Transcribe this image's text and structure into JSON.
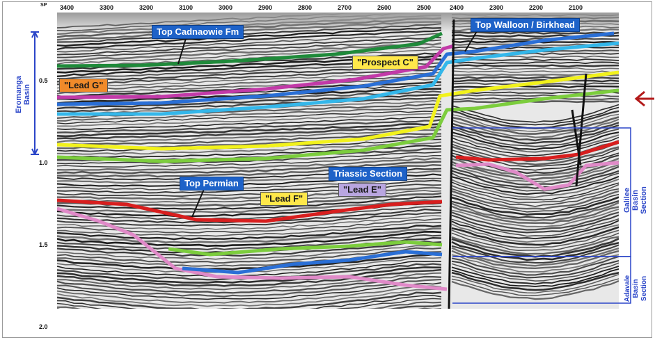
{
  "shotpoint_axis": {
    "prefix": "SP",
    "labels": [
      "3400",
      "3300",
      "3200",
      "3100",
      "3000",
      "2900",
      "2800",
      "2700",
      "2600",
      "2500",
      "2400",
      "2300",
      "2200",
      "2100"
    ]
  },
  "time_axis": {
    "labels": [
      "0.5",
      "1.0",
      "1.5",
      "2.0"
    ]
  },
  "horizon_labels": {
    "top_cadnaowie": "Top Cadnaowie Fm",
    "top_walloon": "Top Walloon / Birkhead",
    "prospect_c": "\"Prospect C\"",
    "lead_g": "\"Lead G\"",
    "triassic": "Triassic Section",
    "top_permian": "Top Permian",
    "lead_f": "\"Lead F\"",
    "lead_e": "\"Lead E\""
  },
  "basin_labels": {
    "eromanga": "Eromanga Basin",
    "galilee": "Galilee Basin Section",
    "adavale": "Adavale Basin Section"
  },
  "colors": {
    "green_dark": "#1f8a3a",
    "magenta": "#c23aa8",
    "blue": "#2a6fd6",
    "cyan": "#34b7ea",
    "yellow": "#f2f21c",
    "green_light": "#7ccd3d",
    "red": "#d81e1e",
    "pink": "#e08ac8",
    "basin_blue": "#2a45c8",
    "arrow_red": "#b31a1a"
  }
}
